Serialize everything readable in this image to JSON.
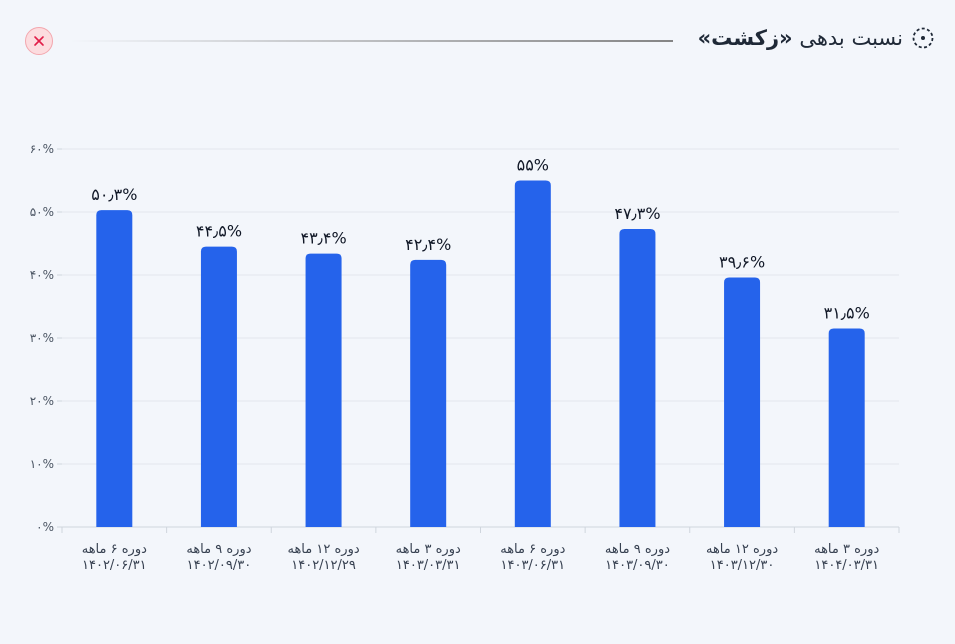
{
  "header": {
    "title_prefix": "نسبت بدهی",
    "title_emphasis": "«زکشت»",
    "title_icon": "dashed-circle-icon",
    "close_icon": "close-icon"
  },
  "colors": {
    "bar": "#2563eb",
    "background": "#f3f6fb",
    "close_bg": "#fcdcdf",
    "close_x": "#e11d48"
  },
  "chart_data": {
    "type": "bar",
    "categories": [
      [
        "دوره ۶ ماهه",
        "۱۴۰۲/۰۶/۳۱"
      ],
      [
        "دوره ۹ ماهه",
        "۱۴۰۲/۰۹/۳۰"
      ],
      [
        "دوره ۱۲ ماهه",
        "۱۴۰۲/۱۲/۲۹"
      ],
      [
        "دوره ۳ ماهه",
        "۱۴۰۳/۰۳/۳۱"
      ],
      [
        "دوره ۶ ماهه",
        "۱۴۰۳/۰۶/۳۱"
      ],
      [
        "دوره ۹ ماهه",
        "۱۴۰۳/۰۹/۳۰"
      ],
      [
        "دوره ۱۲ ماهه",
        "۱۴۰۳/۱۲/۳۰"
      ],
      [
        "دوره ۳ ماهه",
        "۱۴۰۴/۰۳/۳۱"
      ]
    ],
    "values": [
      50.3,
      44.5,
      43.4,
      42.4,
      55,
      47.3,
      39.6,
      31.5
    ],
    "data_labels": [
      "۵۰٫۳%",
      "۴۴٫۵%",
      "۴۳٫۴%",
      "۴۲٫۴%",
      "۵۵%",
      "۴۷٫۳%",
      "۳۹٫۶%",
      "۳۱٫۵%"
    ],
    "yticks": [
      0,
      10,
      20,
      30,
      40,
      50,
      60
    ],
    "ytick_labels": [
      "۰%",
      "۱۰%",
      "۲۰%",
      "۳۰%",
      "۴۰%",
      "۵۰%",
      "۶۰%"
    ],
    "ylim": [
      0,
      60
    ],
    "grid": true,
    "legend": "none",
    "title": "",
    "xlabel": "",
    "ylabel": ""
  }
}
